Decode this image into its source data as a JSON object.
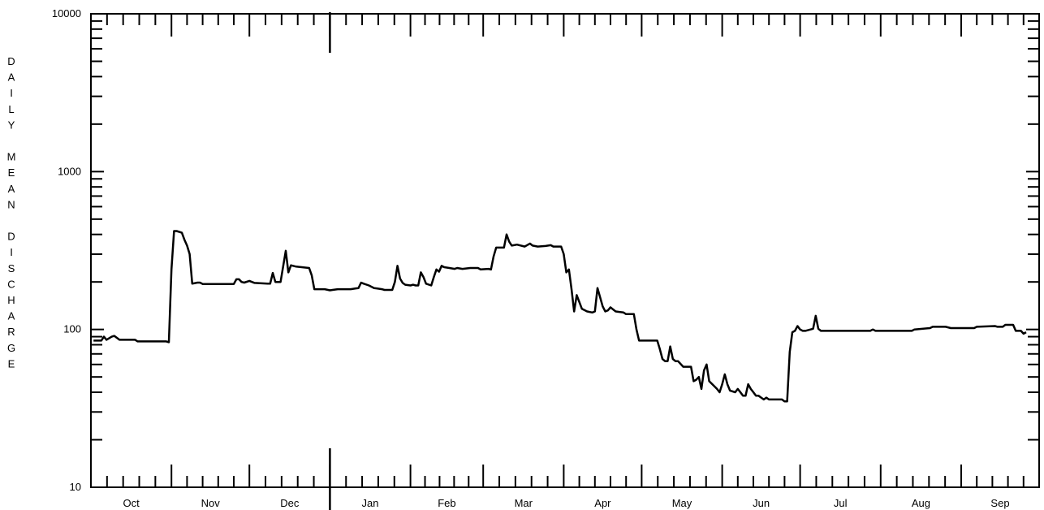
{
  "chart_data": {
    "type": "line",
    "title": "",
    "xlabel": "",
    "ylabel": "DAILY MEAN DISCHARGE",
    "y_scale": "log",
    "ylim": [
      10,
      10000
    ],
    "y_tick_labels": [
      "10",
      "100",
      "1000",
      "10000"
    ],
    "y_tick_values": [
      10,
      100,
      1000,
      10000
    ],
    "x_tick_labels": [
      "Oct",
      "Nov",
      "Dec",
      "Jan",
      "Feb",
      "Mar",
      "Apr",
      "May",
      "Jun",
      "Jul",
      "Aug",
      "Sep"
    ],
    "month_days": [
      31,
      30,
      31,
      31,
      28,
      31,
      30,
      31,
      30,
      31,
      31,
      30
    ],
    "year_boundary_after_month_index": 2,
    "grid": false,
    "legend": "none",
    "series": [
      {
        "line_color": "#000000",
        "points": [
          [
            1,
            85
          ],
          [
            4,
            85
          ],
          [
            5,
            90
          ],
          [
            6,
            86
          ],
          [
            8,
            90
          ],
          [
            9,
            91
          ],
          [
            11,
            86
          ],
          [
            17,
            86
          ],
          [
            18,
            84
          ],
          [
            29,
            84
          ],
          [
            30,
            83
          ],
          [
            31,
            240
          ],
          [
            32,
            420
          ],
          [
            33,
            420
          ],
          [
            35,
            410
          ],
          [
            36,
            370
          ],
          [
            37,
            340
          ],
          [
            38,
            300
          ],
          [
            39,
            195
          ],
          [
            41,
            198
          ],
          [
            42,
            198
          ],
          [
            43,
            194
          ],
          [
            55,
            194
          ],
          [
            56,
            208
          ],
          [
            57,
            208
          ],
          [
            58,
            200
          ],
          [
            59,
            198
          ],
          [
            61,
            203
          ],
          [
            63,
            197
          ],
          [
            68,
            195
          ],
          [
            69,
            195
          ],
          [
            70,
            228
          ],
          [
            71,
            200
          ],
          [
            73,
            200
          ],
          [
            75,
            315
          ],
          [
            76,
            230
          ],
          [
            77,
            255
          ],
          [
            79,
            250
          ],
          [
            84,
            245
          ],
          [
            85,
            220
          ],
          [
            86,
            180
          ],
          [
            90,
            180
          ],
          [
            92,
            177
          ],
          [
            93,
            178
          ],
          [
            95,
            180
          ],
          [
            100,
            180
          ],
          [
            102,
            182
          ],
          [
            103,
            183
          ],
          [
            104,
            198
          ],
          [
            105,
            195
          ],
          [
            107,
            190
          ],
          [
            109,
            183
          ],
          [
            110,
            182
          ],
          [
            112,
            180
          ],
          [
            113,
            178
          ],
          [
            116,
            178
          ],
          [
            117,
            200
          ],
          [
            118,
            253
          ],
          [
            119,
            210
          ],
          [
            120,
            197
          ],
          [
            121,
            192
          ],
          [
            123,
            190
          ],
          [
            124,
            192
          ],
          [
            125,
            190
          ],
          [
            126,
            190
          ],
          [
            127,
            230
          ],
          [
            128,
            215
          ],
          [
            129,
            195
          ],
          [
            131,
            190
          ],
          [
            132,
            215
          ],
          [
            133,
            240
          ],
          [
            134,
            232
          ],
          [
            135,
            253
          ],
          [
            136,
            248
          ],
          [
            138,
            245
          ],
          [
            140,
            242
          ],
          [
            141,
            245
          ],
          [
            143,
            242
          ],
          [
            146,
            245
          ],
          [
            149,
            245
          ],
          [
            150,
            240
          ],
          [
            153,
            242
          ],
          [
            154,
            240
          ],
          [
            155,
            290
          ],
          [
            156,
            330
          ],
          [
            158,
            330
          ],
          [
            159,
            330
          ],
          [
            160,
            400
          ],
          [
            161,
            360
          ],
          [
            162,
            340
          ],
          [
            164,
            345
          ],
          [
            167,
            335
          ],
          [
            169,
            350
          ],
          [
            170,
            340
          ],
          [
            172,
            335
          ],
          [
            175,
            338
          ],
          [
            177,
            342
          ],
          [
            178,
            335
          ],
          [
            181,
            335
          ],
          [
            182,
            300
          ],
          [
            183,
            230
          ],
          [
            184,
            240
          ],
          [
            185,
            180
          ],
          [
            186,
            130
          ],
          [
            187,
            165
          ],
          [
            189,
            135
          ],
          [
            191,
            130
          ],
          [
            193,
            128
          ],
          [
            194,
            130
          ],
          [
            195,
            183
          ],
          [
            196,
            160
          ],
          [
            197,
            140
          ],
          [
            198,
            130
          ],
          [
            199,
            132
          ],
          [
            200,
            138
          ],
          [
            202,
            130
          ],
          [
            205,
            128
          ],
          [
            206,
            125
          ],
          [
            209,
            125
          ],
          [
            210,
            100
          ],
          [
            211,
            85
          ],
          [
            218,
            85
          ],
          [
            219,
            75
          ],
          [
            220,
            65
          ],
          [
            221,
            63
          ],
          [
            222,
            63
          ],
          [
            223,
            78
          ],
          [
            224,
            65
          ],
          [
            225,
            63
          ],
          [
            226,
            63
          ],
          [
            228,
            58
          ],
          [
            231,
            58
          ],
          [
            232,
            47
          ],
          [
            233,
            48
          ],
          [
            234,
            50
          ],
          [
            235,
            42
          ],
          [
            236,
            55
          ],
          [
            237,
            60
          ],
          [
            238,
            47
          ],
          [
            241,
            42
          ],
          [
            242,
            40
          ],
          [
            243,
            45
          ],
          [
            244,
            52
          ],
          [
            245,
            45
          ],
          [
            246,
            41
          ],
          [
            248,
            40
          ],
          [
            249,
            42
          ],
          [
            250,
            40
          ],
          [
            251,
            38
          ],
          [
            252,
            38
          ],
          [
            253,
            45
          ],
          [
            254,
            42
          ],
          [
            255,
            40
          ],
          [
            256,
            38
          ],
          [
            257,
            38
          ],
          [
            258,
            37
          ],
          [
            259,
            36
          ],
          [
            260,
            37
          ],
          [
            261,
            36
          ],
          [
            266,
            36
          ],
          [
            267,
            35
          ],
          [
            268,
            35
          ],
          [
            269,
            72
          ],
          [
            270,
            96
          ],
          [
            271,
            98
          ],
          [
            272,
            105
          ],
          [
            273,
            100
          ],
          [
            274,
            98
          ],
          [
            275,
            98
          ],
          [
            277,
            100
          ],
          [
            278,
            101
          ],
          [
            279,
            122
          ],
          [
            280,
            101
          ],
          [
            281,
            98
          ],
          [
            291,
            98
          ],
          [
            300,
            98
          ],
          [
            301,
            100
          ],
          [
            302,
            98
          ],
          [
            316,
            98
          ],
          [
            317,
            100
          ],
          [
            323,
            102
          ],
          [
            324,
            104
          ],
          [
            329,
            104
          ],
          [
            331,
            102
          ],
          [
            340,
            102
          ],
          [
            341,
            104
          ],
          [
            348,
            105
          ],
          [
            349,
            104
          ],
          [
            351,
            104
          ],
          [
            352,
            107
          ],
          [
            355,
            107
          ],
          [
            356,
            98
          ],
          [
            358,
            98
          ],
          [
            359,
            94
          ],
          [
            360,
            96
          ]
        ]
      }
    ]
  }
}
